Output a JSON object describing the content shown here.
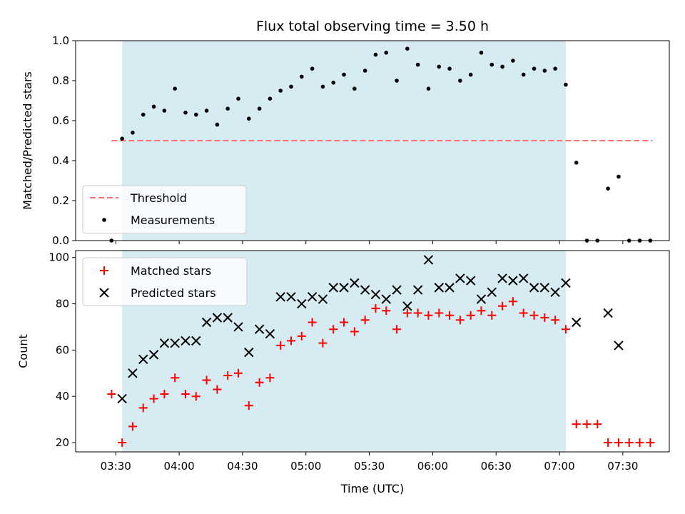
{
  "chart_data": {
    "title": "Flux total observing time = 3.50 h",
    "xlabel": "Time (UTC)",
    "x_ticks": [
      "03:30",
      "04:00",
      "04:30",
      "05:00",
      "05:30",
      "06:00",
      "06:30",
      "07:00",
      "07:30"
    ],
    "xlim": [
      "03:11",
      "07:52"
    ],
    "observing_window": {
      "start": "03:33",
      "end": "07:03",
      "color": "#add8e6"
    },
    "panels": [
      {
        "type": "scatter",
        "ylabel": "Matched/Predicted stars",
        "ylim": [
          0,
          1.0
        ],
        "y_ticks": [
          "0.0",
          "0.2",
          "0.4",
          "0.6",
          "0.8",
          "1.0"
        ],
        "legend_position": "lower-left",
        "series": [
          {
            "name": "Threshold",
            "kind": "dashed-line",
            "color": "#ff6f6f",
            "x": [
              "03:28",
              "07:44"
            ],
            "y": [
              0.5,
              0.5
            ]
          },
          {
            "name": "Measurements",
            "kind": "dot",
            "color": "#000000",
            "x": [
              "03:28",
              "03:33",
              "03:38",
              "03:43",
              "03:48",
              "03:53",
              "03:58",
              "04:03",
              "04:08",
              "04:13",
              "04:18",
              "04:23",
              "04:28",
              "04:33",
              "04:38",
              "04:43",
              "04:48",
              "04:53",
              "04:58",
              "05:03",
              "05:08",
              "05:13",
              "05:18",
              "05:23",
              "05:28",
              "05:33",
              "05:38",
              "05:43",
              "05:48",
              "05:53",
              "05:58",
              "06:03",
              "06:08",
              "06:13",
              "06:18",
              "06:23",
              "06:28",
              "06:33",
              "06:38",
              "06:43",
              "06:48",
              "06:53",
              "06:58",
              "07:03",
              "07:08",
              "07:13",
              "07:18",
              "07:23",
              "07:28",
              "07:33",
              "07:38",
              "07:43"
            ],
            "y": [
              0.0,
              0.51,
              0.54,
              0.63,
              0.67,
              0.65,
              0.76,
              0.64,
              0.63,
              0.65,
              0.58,
              0.66,
              0.71,
              0.61,
              0.66,
              0.71,
              0.75,
              0.77,
              0.82,
              0.86,
              0.77,
              0.79,
              0.83,
              0.76,
              0.85,
              0.93,
              0.94,
              0.8,
              0.96,
              0.88,
              0.76,
              0.87,
              0.86,
              0.8,
              0.83,
              0.94,
              0.88,
              0.87,
              0.9,
              0.83,
              0.86,
              0.85,
              0.86,
              0.78,
              0.39,
              0.0,
              0.0,
              0.26,
              0.32,
              0.0,
              0.0,
              0.0
            ]
          }
        ]
      },
      {
        "type": "scatter",
        "ylabel": "Count",
        "ylim": [
          16,
          103
        ],
        "y_ticks": [
          "20",
          "40",
          "60",
          "80",
          "100"
        ],
        "legend_position": "upper-left",
        "series": [
          {
            "name": "Matched stars",
            "kind": "plus",
            "color": "#ff0000",
            "x": [
              "03:28",
              "03:33",
              "03:38",
              "03:43",
              "03:48",
              "03:53",
              "03:58",
              "04:03",
              "04:08",
              "04:13",
              "04:18",
              "04:23",
              "04:28",
              "04:33",
              "04:38",
              "04:43",
              "04:48",
              "04:53",
              "04:58",
              "05:03",
              "05:08",
              "05:13",
              "05:18",
              "05:23",
              "05:28",
              "05:33",
              "05:38",
              "05:43",
              "05:48",
              "05:53",
              "05:58",
              "06:03",
              "06:08",
              "06:13",
              "06:18",
              "06:23",
              "06:28",
              "06:33",
              "06:38",
              "06:43",
              "06:48",
              "06:53",
              "06:58",
              "07:03",
              "07:08",
              "07:13",
              "07:18",
              "07:23",
              "07:28",
              "07:33",
              "07:38",
              "07:43"
            ],
            "y": [
              41,
              20,
              27,
              35,
              39,
              41,
              48,
              41,
              40,
              47,
              43,
              49,
              50,
              36,
              46,
              48,
              62,
              64,
              66,
              72,
              63,
              69,
              72,
              68,
              73,
              78,
              77,
              69,
              76,
              76,
              75,
              76,
              75,
              73,
              75,
              77,
              75,
              79,
              81,
              76,
              75,
              74,
              73,
              69,
              28,
              28,
              28,
              20,
              20,
              20,
              20,
              20
            ]
          },
          {
            "name": "Predicted stars",
            "kind": "x",
            "color": "#000000",
            "x": [
              "03:33",
              "03:38",
              "03:43",
              "03:48",
              "03:53",
              "03:58",
              "04:03",
              "04:08",
              "04:13",
              "04:18",
              "04:23",
              "04:28",
              "04:33",
              "04:38",
              "04:43",
              "04:48",
              "04:53",
              "04:58",
              "05:03",
              "05:08",
              "05:13",
              "05:18",
              "05:23",
              "05:28",
              "05:33",
              "05:38",
              "05:43",
              "05:48",
              "05:53",
              "05:58",
              "06:03",
              "06:08",
              "06:13",
              "06:18",
              "06:23",
              "06:28",
              "06:33",
              "06:38",
              "06:43",
              "06:48",
              "06:53",
              "06:58",
              "07:03",
              "07:08",
              "07:23",
              "07:28"
            ],
            "y": [
              39,
              50,
              56,
              58,
              63,
              63,
              64,
              64,
              72,
              74,
              74,
              70,
              59,
              69,
              67,
              83,
              83,
              80,
              83,
              82,
              87,
              87,
              89,
              86,
              84,
              82,
              86,
              79,
              86,
              99,
              87,
              87,
              91,
              90,
              82,
              85,
              91,
              90,
              91,
              87,
              87,
              85,
              89,
              72,
              76,
              62
            ]
          }
        ]
      }
    ]
  }
}
